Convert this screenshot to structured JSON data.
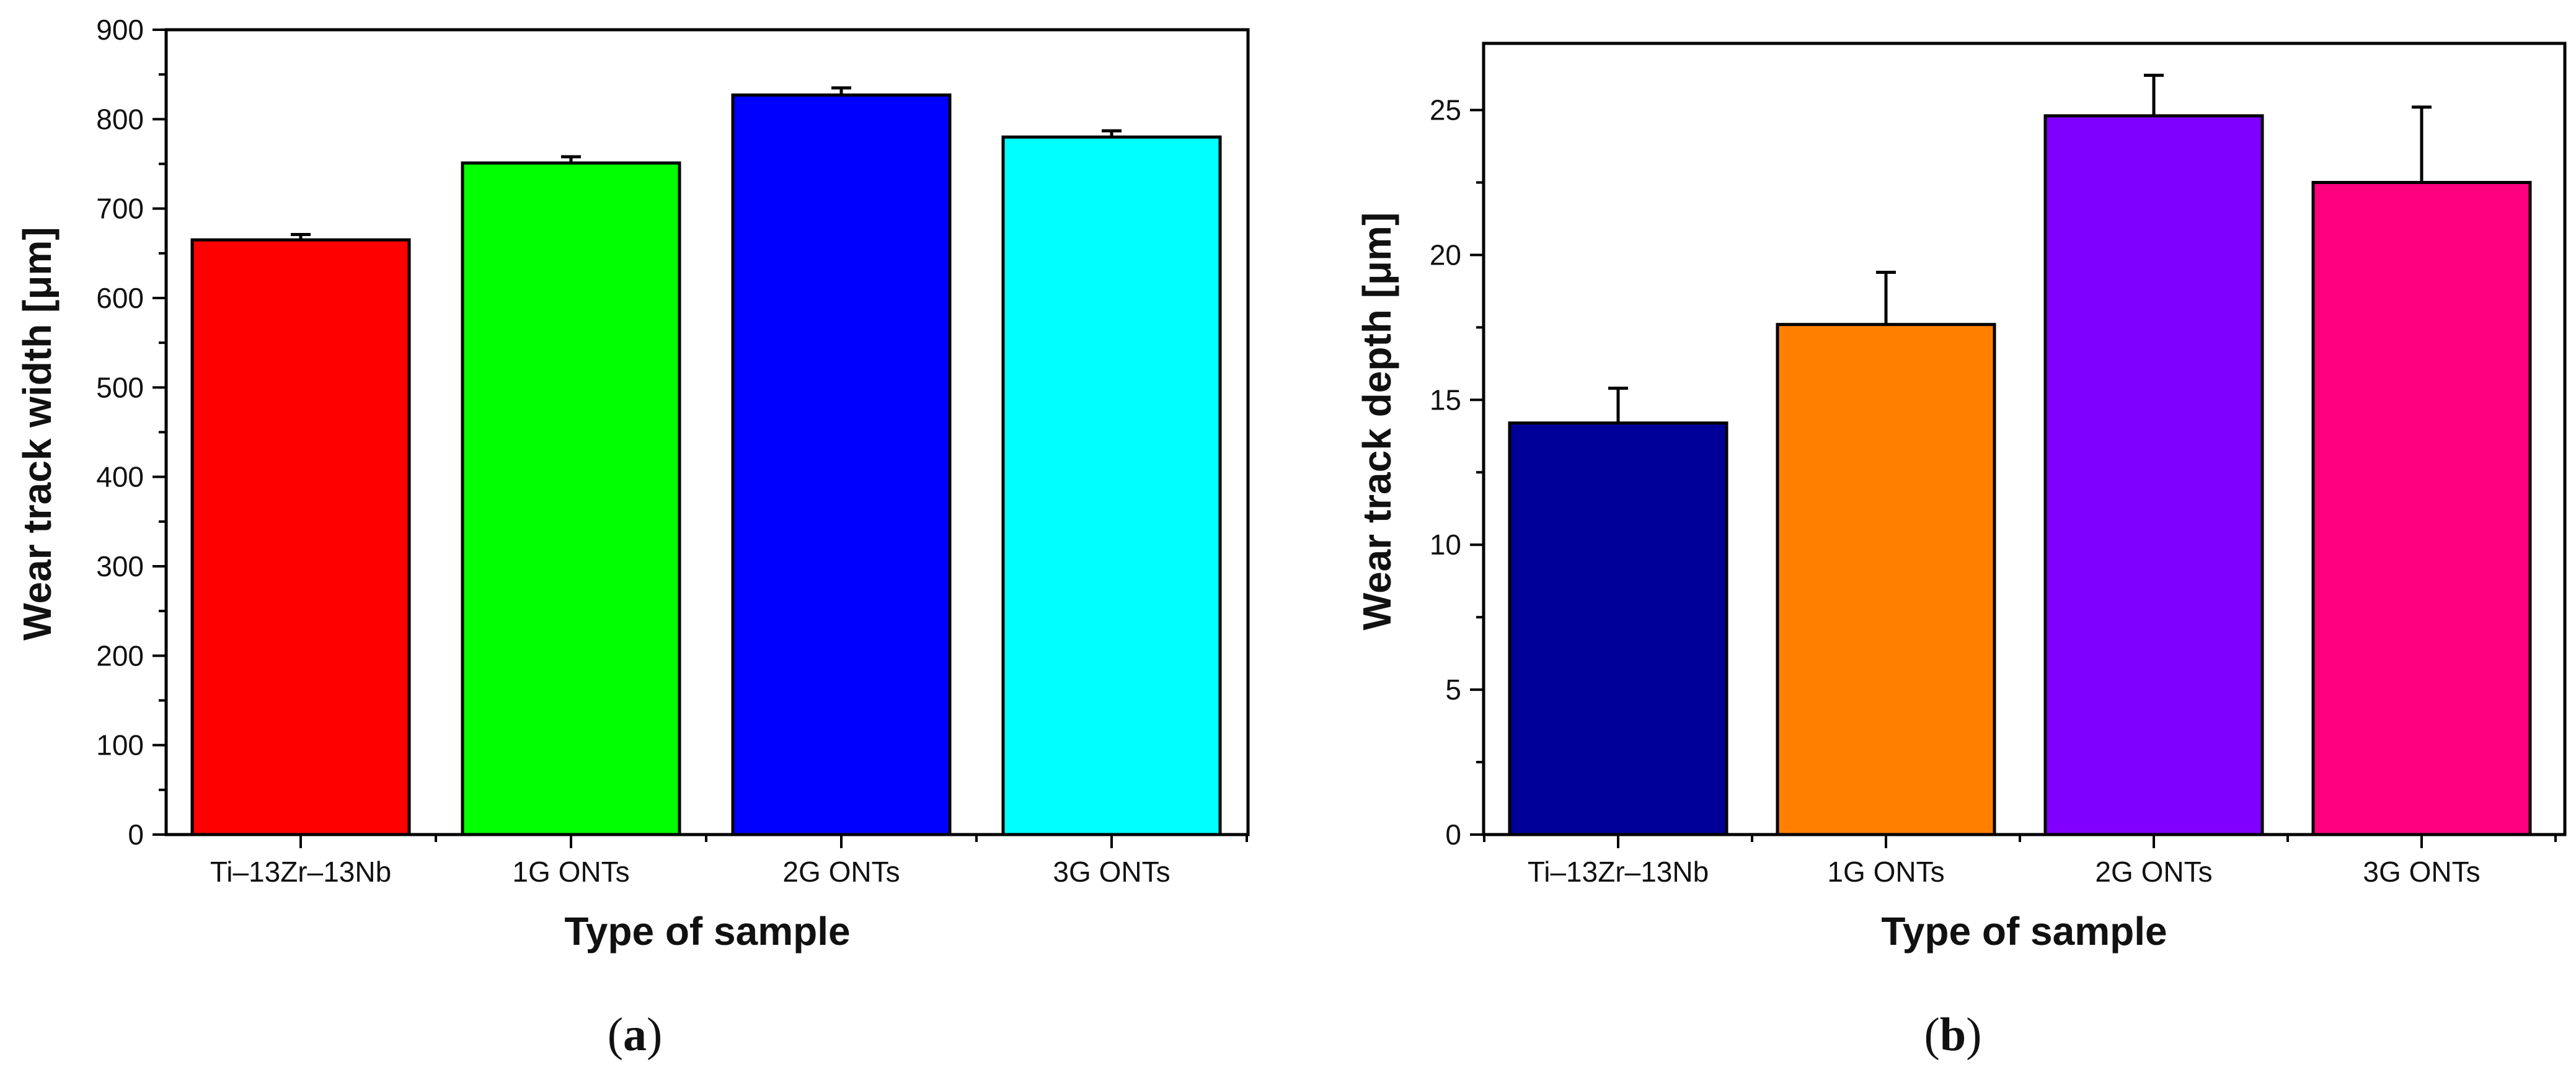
{
  "panels": [
    {
      "label_prefix": "(",
      "label_letter": "a",
      "label_suffix": ")"
    },
    {
      "label_prefix": "(",
      "label_letter": "b",
      "label_suffix": ")"
    }
  ],
  "chart_data": [
    {
      "type": "bar",
      "title": "",
      "xlabel": "Type of sample",
      "ylabel": "Wear track width [μm]",
      "categories": [
        "Ti–13Zr–13Nb",
        "1G ONTs",
        "2G ONTs",
        "3G ONTs"
      ],
      "values": [
        665,
        751,
        827,
        780
      ],
      "errors": [
        6,
        7,
        8,
        7
      ],
      "colors": [
        "#ff0000",
        "#00ff00",
        "#0000ff",
        "#00ffff"
      ],
      "ylim": [
        0,
        900
      ],
      "yticks": [
        0,
        100,
        200,
        300,
        400,
        500,
        600,
        700,
        800,
        900
      ],
      "yminor_step": 50,
      "grid": false
    },
    {
      "type": "bar",
      "title": "",
      "xlabel": "Type of sample",
      "ylabel": "Wear track depth [μm]",
      "categories": [
        "Ti–13Zr–13Nb",
        "1G ONTs",
        "2G ONTs",
        "3G ONTs"
      ],
      "values": [
        14.2,
        17.6,
        24.8,
        22.5
      ],
      "errors": [
        1.2,
        1.8,
        1.4,
        2.6
      ],
      "colors": [
        "#000099",
        "#ff8000",
        "#8000ff",
        "#ff0080"
      ],
      "ylim": [
        0,
        27.3
      ],
      "yticks": [
        0,
        5,
        10,
        15,
        20,
        25
      ],
      "yminor_step": 2.5,
      "grid": false
    }
  ]
}
